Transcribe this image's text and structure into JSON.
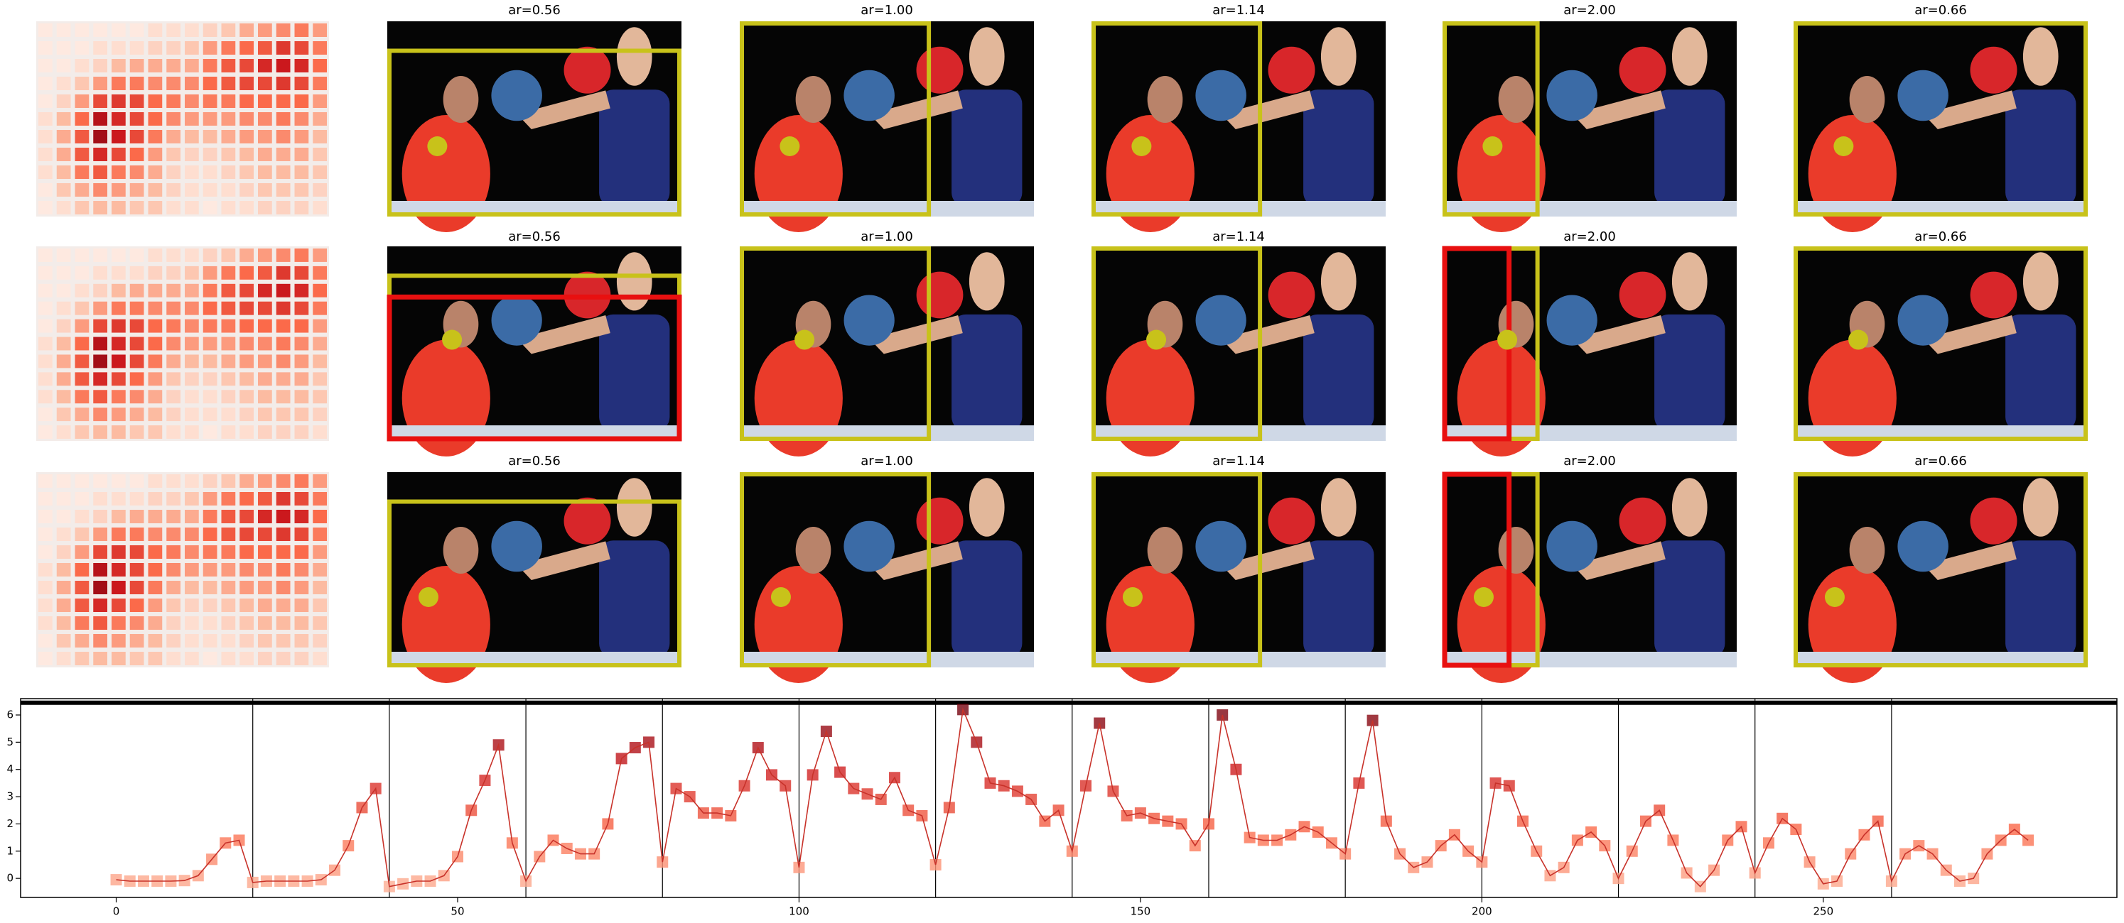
{
  "chart_data": [
    {
      "type": "heatmap",
      "values": [
        [
          0.05,
          0.05,
          0.05,
          0.05,
          0.05,
          0.05,
          0.1,
          0.1,
          0.1,
          0.15,
          0.2,
          0.3,
          0.35,
          0.4,
          0.45,
          0.35
        ],
        [
          0.05,
          0.05,
          0.05,
          0.1,
          0.1,
          0.1,
          0.15,
          0.15,
          0.2,
          0.35,
          0.45,
          0.5,
          0.55,
          0.65,
          0.6,
          0.45
        ],
        [
          0.05,
          0.05,
          0.1,
          0.15,
          0.25,
          0.3,
          0.3,
          0.3,
          0.3,
          0.45,
          0.55,
          0.6,
          0.7,
          0.75,
          0.7,
          0.5
        ],
        [
          0.05,
          0.1,
          0.2,
          0.35,
          0.45,
          0.45,
          0.4,
          0.4,
          0.4,
          0.5,
          0.55,
          0.6,
          0.6,
          0.65,
          0.6,
          0.45
        ],
        [
          0.05,
          0.15,
          0.35,
          0.6,
          0.65,
          0.6,
          0.5,
          0.45,
          0.4,
          0.45,
          0.45,
          0.5,
          0.5,
          0.5,
          0.5,
          0.35
        ],
        [
          0.1,
          0.25,
          0.5,
          0.8,
          0.7,
          0.6,
          0.5,
          0.4,
          0.35,
          0.35,
          0.35,
          0.4,
          0.4,
          0.45,
          0.4,
          0.3
        ],
        [
          0.1,
          0.3,
          0.55,
          0.85,
          0.75,
          0.6,
          0.45,
          0.3,
          0.25,
          0.25,
          0.3,
          0.35,
          0.35,
          0.4,
          0.35,
          0.25
        ],
        [
          0.1,
          0.3,
          0.55,
          0.7,
          0.6,
          0.5,
          0.35,
          0.2,
          0.15,
          0.15,
          0.2,
          0.25,
          0.3,
          0.3,
          0.3,
          0.2
        ],
        [
          0.1,
          0.25,
          0.45,
          0.55,
          0.45,
          0.4,
          0.3,
          0.15,
          0.1,
          0.1,
          0.15,
          0.2,
          0.25,
          0.25,
          0.25,
          0.2
        ],
        [
          0.05,
          0.2,
          0.3,
          0.4,
          0.35,
          0.3,
          0.25,
          0.15,
          0.1,
          0.1,
          0.1,
          0.15,
          0.2,
          0.2,
          0.2,
          0.15
        ],
        [
          0.05,
          0.1,
          0.2,
          0.25,
          0.25,
          0.2,
          0.2,
          0.1,
          0.1,
          0.05,
          0.1,
          0.1,
          0.15,
          0.15,
          0.15,
          0.1
        ]
      ]
    },
    {
      "type": "line",
      "color": "#c8322a",
      "x": [
        0,
        2,
        4,
        6,
        8,
        10,
        12,
        14,
        16,
        18,
        20,
        22,
        24,
        26,
        28,
        30,
        32,
        34,
        36,
        38,
        40,
        42,
        44,
        46,
        48,
        50,
        52,
        54,
        56,
        58,
        60,
        62,
        64,
        66,
        68,
        70,
        72,
        74,
        76,
        78,
        80,
        82,
        84,
        86,
        88,
        90,
        92,
        94,
        96,
        98,
        100,
        102,
        104,
        106,
        108,
        110,
        112,
        114,
        116,
        118,
        120,
        122,
        124,
        126,
        128,
        130,
        132,
        134,
        136,
        138,
        140,
        142,
        144,
        146,
        148,
        150,
        152,
        154,
        156,
        158,
        160,
        162,
        164,
        166,
        168,
        170,
        172,
        174,
        176,
        178,
        180,
        182,
        184,
        186,
        188,
        190,
        192,
        194,
        196,
        198,
        200,
        202,
        204,
        206,
        208,
        210,
        212,
        214,
        216,
        218,
        220,
        222,
        224,
        226,
        228,
        230,
        232,
        234,
        236,
        238,
        240,
        242,
        244,
        246,
        248,
        250,
        252,
        254,
        256,
        258,
        260,
        262,
        264,
        266,
        268,
        270,
        272,
        274,
        276,
        278,
        280
      ],
      "values": [
        -0.05,
        -0.1,
        -0.1,
        -0.1,
        -0.1,
        -0.08,
        0.1,
        0.7,
        1.3,
        1.4,
        -0.15,
        -0.1,
        -0.1,
        -0.1,
        -0.1,
        -0.05,
        0.3,
        1.2,
        2.6,
        3.3,
        -0.3,
        -0.2,
        -0.1,
        -0.1,
        0.1,
        0.8,
        2.5,
        3.6,
        4.9,
        1.3,
        -0.1,
        0.8,
        1.4,
        1.1,
        0.9,
        0.9,
        2.0,
        4.4,
        4.8,
        5.0,
        0.6,
        3.3,
        3.0,
        2.4,
        2.4,
        2.3,
        3.4,
        4.8,
        3.8,
        3.4,
        0.4,
        3.8,
        5.4,
        3.9,
        3.3,
        3.1,
        2.9,
        3.7,
        2.5,
        2.3,
        0.5,
        2.6,
        6.2,
        5.0,
        3.5,
        3.4,
        3.2,
        2.9,
        2.1,
        2.5,
        1.0,
        3.4,
        5.7,
        3.2,
        2.3,
        2.4,
        2.2,
        2.1,
        2.0,
        1.2,
        2.0,
        6.0,
        4.0,
        1.5,
        1.4,
        1.4,
        1.6,
        1.9,
        1.7,
        1.3,
        0.9,
        3.5,
        5.8,
        2.1,
        0.9,
        0.4,
        0.6,
        1.2,
        1.6,
        1.0,
        0.6,
        3.5,
        3.4,
        2.1,
        1.0,
        0.1,
        0.4,
        1.4,
        1.7,
        1.2,
        0.0,
        1.0,
        2.1,
        2.5,
        1.4,
        0.2,
        -0.3,
        0.3,
        1.4,
        1.9,
        0.2,
        1.3,
        2.2,
        1.8,
        0.6,
        -0.2,
        -0.1,
        0.9,
        1.6,
        2.1,
        -0.1,
        0.9,
        1.2,
        0.9,
        0.3,
        -0.1,
        0.0,
        0.9,
        1.4,
        1.8,
        1.4
      ],
      "xlim": [
        -14,
        293
      ],
      "ylim": [
        -0.7,
        6.6
      ],
      "xticks": [
        0,
        50,
        100,
        150,
        200,
        250
      ],
      "yticks": [
        0,
        1,
        2,
        3,
        4,
        5,
        6
      ],
      "vlines": [
        20,
        40,
        60,
        80,
        100,
        120,
        140,
        160,
        180,
        200,
        220,
        240,
        260
      ],
      "hline": 6.45
    }
  ],
  "panels": {
    "titles": [
      [
        "ar=0.56",
        "ar=1.00",
        "ar=1.14",
        "ar=2.00",
        "ar=0.66"
      ],
      [
        "ar=0.56",
        "ar=1.00",
        "ar=1.14",
        "ar=2.00",
        "ar=0.66"
      ],
      [
        "ar=0.56",
        "ar=1.00",
        "ar=1.14",
        "ar=2.00",
        "ar=0.66"
      ]
    ]
  }
}
